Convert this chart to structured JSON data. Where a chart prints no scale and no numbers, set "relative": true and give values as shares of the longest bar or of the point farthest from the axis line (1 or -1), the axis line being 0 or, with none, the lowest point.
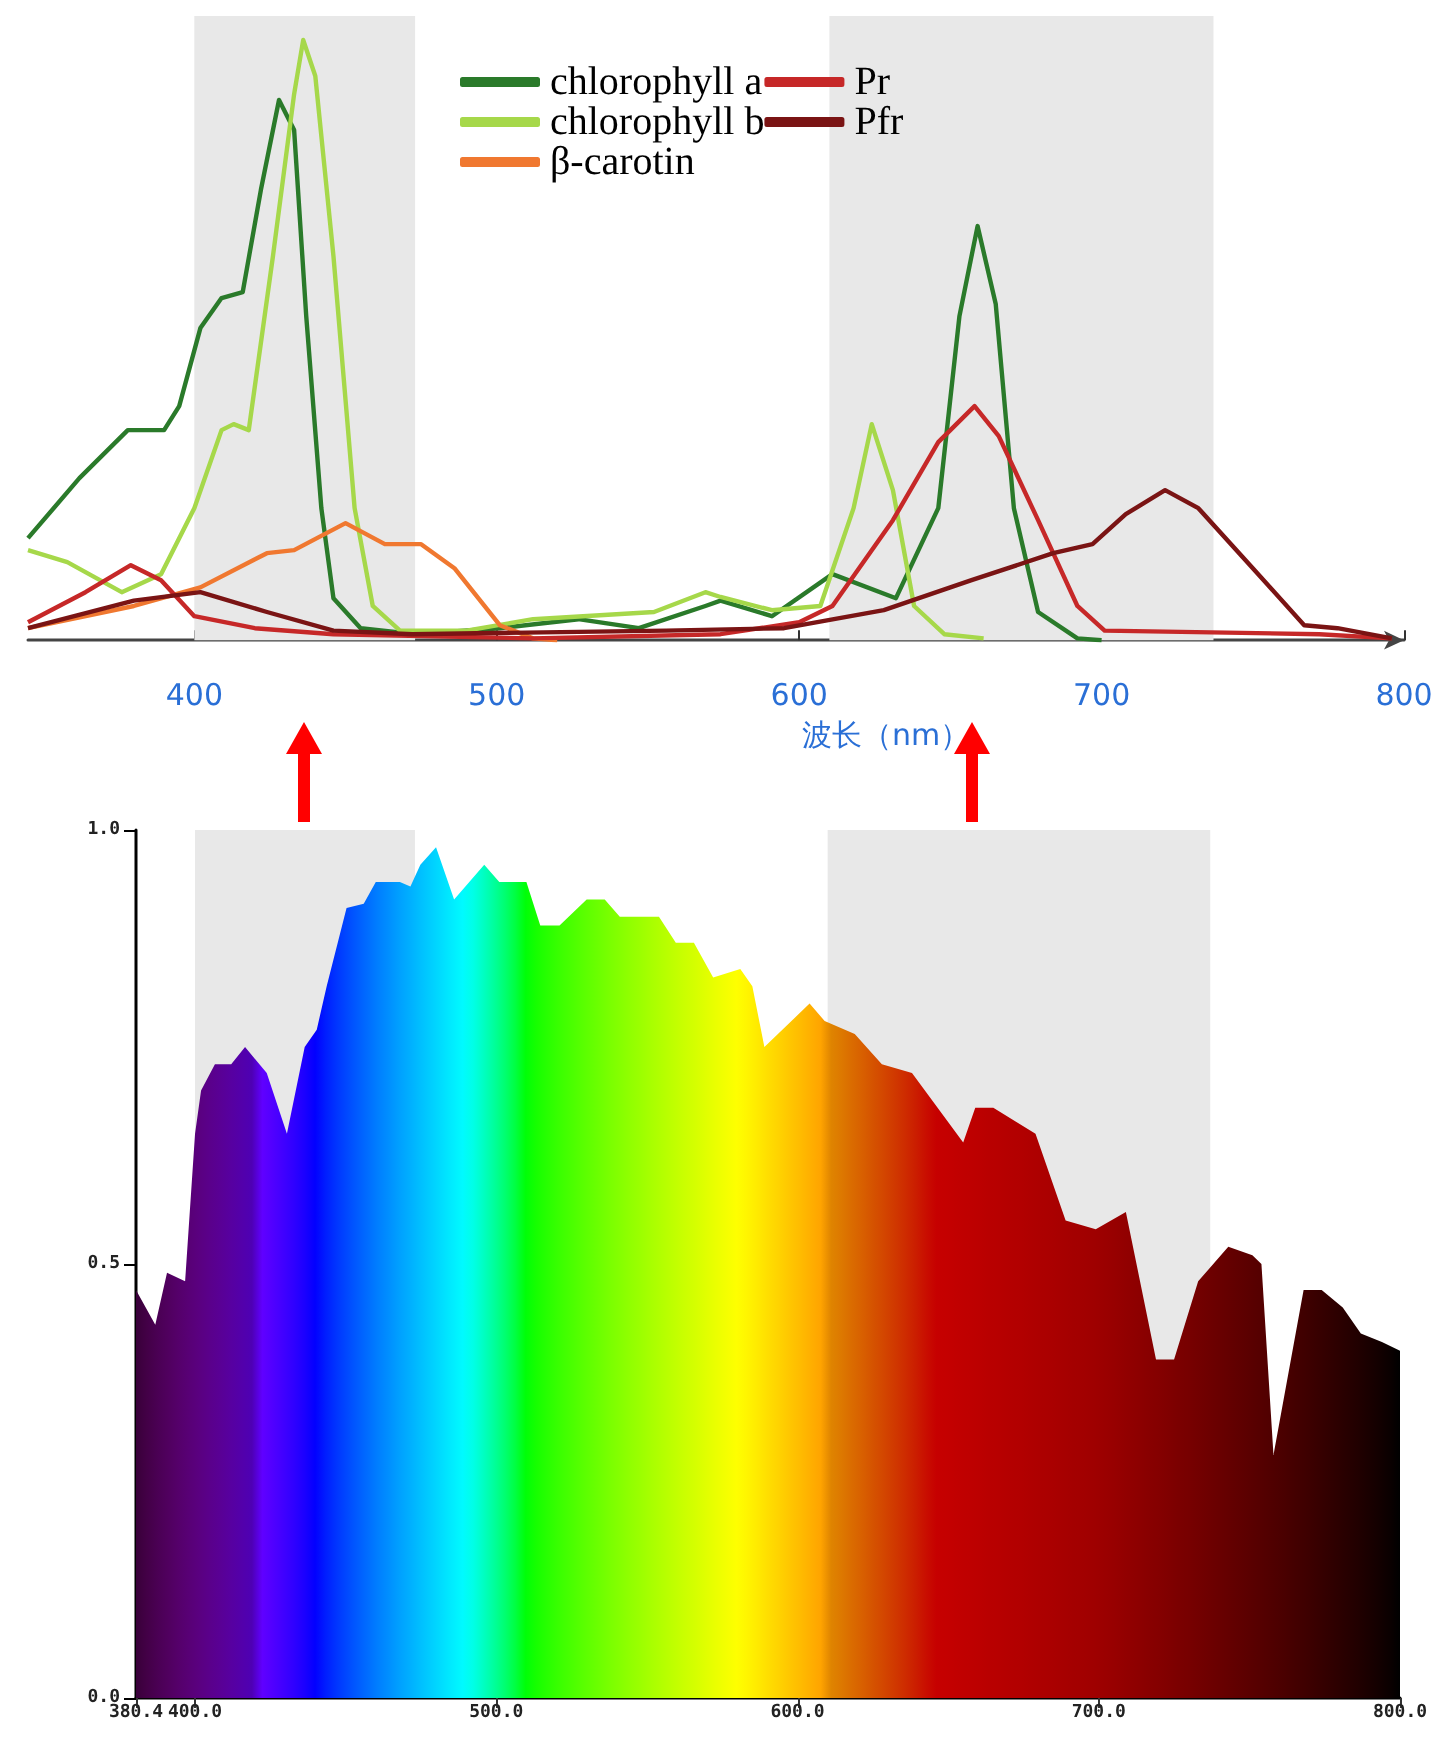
{
  "chart_data": [
    {
      "type": "line",
      "xlabel": "波长（nm）",
      "relative": true,
      "tick_labels": "x",
      "legend": "top right",
      "xlim": [
        345,
        800
      ],
      "xticks": [
        400,
        500,
        600,
        700,
        800
      ],
      "bands": [
        {
          "axis": "x",
          "from": 400,
          "to": 473,
          "color": "#e8e8e8"
        },
        {
          "axis": "x",
          "from": 610,
          "to": 737,
          "color": "#e8e8e8"
        }
      ],
      "series": [
        {
          "name": "chlorophyll a",
          "color": "#2a7a2a",
          "x": [
            345,
            362,
            378,
            390,
            395,
            402,
            409,
            416,
            422,
            428,
            433,
            437,
            442,
            446,
            455,
            473,
            501,
            527,
            547,
            569,
            574,
            591,
            611,
            632,
            646,
            653,
            659,
            665,
            671,
            679,
            692,
            700
          ],
          "values": [
            0.17,
            0.27,
            0.35,
            0.35,
            0.39,
            0.52,
            0.57,
            0.58,
            0.75,
            0.9,
            0.85,
            0.54,
            0.22,
            0.07,
            0.02,
            0.01,
            0.02,
            0.035,
            0.02,
            0.057,
            0.066,
            0.04,
            0.11,
            0.07,
            0.22,
            0.54,
            0.69,
            0.56,
            0.22,
            0.047,
            0.003,
            0
          ]
        },
        {
          "name": "chlorophyll b",
          "color": "#a6d84a",
          "x": [
            345,
            358,
            376,
            389,
            400,
            409,
            413,
            418,
            426,
            433,
            436,
            440,
            446,
            453,
            459,
            468,
            490,
            512,
            552,
            569,
            574,
            591,
            607,
            618,
            624,
            631,
            638,
            648,
            661
          ],
          "values": [
            0.15,
            0.13,
            0.08,
            0.11,
            0.22,
            0.35,
            0.36,
            0.35,
            0.64,
            0.91,
            1,
            0.94,
            0.64,
            0.22,
            0.057,
            0.016,
            0.016,
            0.035,
            0.047,
            0.08,
            0.072,
            0.05,
            0.057,
            0.22,
            0.36,
            0.25,
            0.057,
            0.01,
            0.003
          ]
        },
        {
          "name": "β-carotin",
          "color": "#f07830",
          "x": [
            345,
            380,
            402,
            424,
            433,
            450,
            463,
            475,
            486,
            501,
            512,
            520
          ],
          "values": [
            0.02,
            0.057,
            0.088,
            0.145,
            0.15,
            0.195,
            0.16,
            0.16,
            0.12,
            0.025,
            0.003,
            0
          ]
        },
        {
          "name": "Pr",
          "color": "#c62828",
          "x": [
            345,
            364,
            379,
            389,
            400,
            420,
            446,
            512,
            574,
            600,
            611,
            631,
            646,
            658,
            666,
            679,
            692,
            701,
            772,
            796
          ],
          "values": [
            0.03,
            0.08,
            0.125,
            0.1,
            0.04,
            0.02,
            0.01,
            0.003,
            0.01,
            0.03,
            0.057,
            0.2,
            0.33,
            0.39,
            0.34,
            0.2,
            0.057,
            0.016,
            0.01,
            0.003
          ]
        },
        {
          "name": "Pfr",
          "color": "#7a1414",
          "x": [
            345,
            380,
            402,
            424,
            446,
            472,
            556,
            595,
            628,
            657,
            684,
            697,
            708,
            721,
            732,
            750,
            767,
            778,
            796
          ],
          "values": [
            0.02,
            0.066,
            0.08,
            0.047,
            0.016,
            0.01,
            0.016,
            0.02,
            0.05,
            0.1,
            0.145,
            0.16,
            0.21,
            0.25,
            0.22,
            0.12,
            0.025,
            0.02,
            0.003
          ]
        }
      ]
    },
    {
      "type": "area",
      "xlim": [
        380.4,
        800
      ],
      "ylim": [
        0,
        1
      ],
      "xticks": [
        {
          "value": 380.4,
          "label": "380.4"
        },
        {
          "value": 400,
          "label": "400.0"
        },
        {
          "value": 500,
          "label": "500.0"
        },
        {
          "value": 600,
          "label": "600.0"
        },
        {
          "value": 700,
          "label": "700.0"
        },
        {
          "value": 800,
          "label": "800.0"
        }
      ],
      "yticks": [
        {
          "value": 0,
          "label": "0.0"
        },
        {
          "value": 0.5,
          "label": "0.5"
        },
        {
          "value": 1,
          "label": "1.0"
        }
      ],
      "bands": [
        {
          "axis": "x",
          "from": 400,
          "to": 473,
          "color": "#e8e8e8"
        },
        {
          "axis": "x",
          "from": 610,
          "to": 737,
          "color": "#e8e8e8"
        }
      ],
      "series": [
        {
          "x": [
            380.4,
            386.8,
            390.7,
            396.7,
            400,
            402,
            406.6,
            412,
            416.6,
            423.8,
            430.5,
            436.4,
            440.4,
            443.7,
            450.3,
            456,
            460,
            468,
            471.5,
            474.8,
            480,
            486,
            496,
            501,
            510,
            514.6,
            521,
            530,
            536,
            541,
            554,
            559.6,
            565.6,
            572,
            581,
            585,
            589,
            604,
            609,
            619,
            628,
            638,
            655,
            659,
            665,
            679,
            689,
            699,
            709,
            719,
            725,
            733,
            743,
            751,
            754,
            758,
            768,
            774,
            781,
            787,
            794,
            800
          ],
          "values": [
            0.47,
            0.43,
            0.49,
            0.48,
            0.65,
            0.7,
            0.73,
            0.73,
            0.75,
            0.72,
            0.65,
            0.75,
            0.77,
            0.82,
            0.91,
            0.915,
            0.94,
            0.94,
            0.935,
            0.96,
            0.98,
            0.92,
            0.96,
            0.94,
            0.94,
            0.89,
            0.89,
            0.92,
            0.92,
            0.9,
            0.9,
            0.87,
            0.87,
            0.83,
            0.84,
            0.82,
            0.75,
            0.8,
            0.78,
            0.765,
            0.73,
            0.72,
            0.64,
            0.68,
            0.68,
            0.65,
            0.55,
            0.54,
            0.56,
            0.39,
            0.39,
            0.48,
            0.52,
            0.51,
            0.5,
            0.28,
            0.47,
            0.47,
            0.45,
            0.42,
            0.41,
            0.4
          ]
        }
      ]
    }
  ]
}
